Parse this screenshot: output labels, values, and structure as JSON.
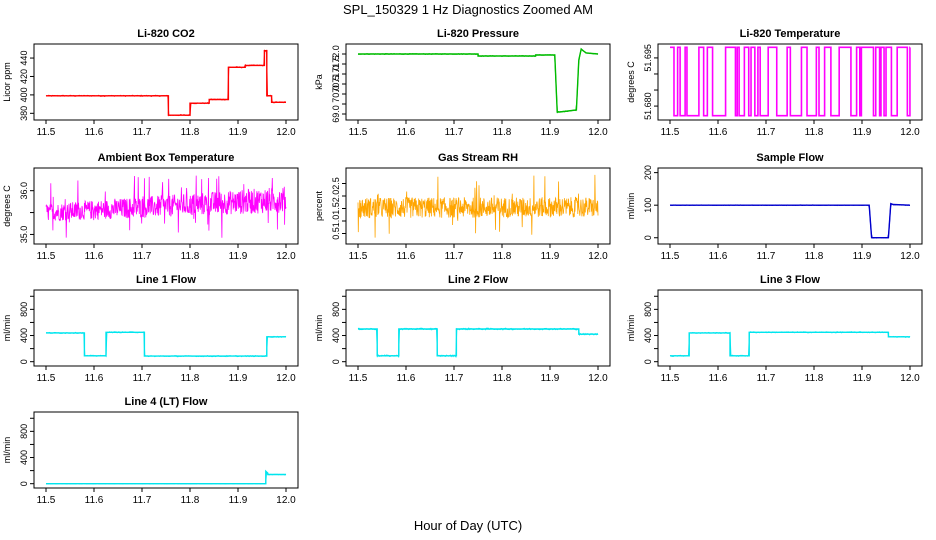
{
  "figure": {
    "title": "SPL_150329  1 Hz Diagnostics Zoomed AM",
    "xlabel": "Hour of Day (UTC)"
  },
  "chart_data": [
    {
      "type": "line",
      "title": "Li-820 CO2",
      "ylabel": "Licor ppm",
      "color": "#ff0000",
      "xlim": [
        11.5,
        12.0
      ],
      "ylim": [
        376,
        452
      ],
      "yticks": [
        380,
        400,
        420,
        440
      ],
      "ytick_labels": [
        "380",
        "400",
        "420",
        "440"
      ],
      "noise": 0.6,
      "series": [
        {
          "x": [
            11.5,
            11.755,
            11.755,
            11.8,
            11.8,
            11.84,
            11.84,
            11.88,
            11.88,
            11.915,
            11.915,
            11.955,
            11.955,
            11.96,
            11.96,
            11.97,
            11.97,
            12.0
          ],
          "y": [
            399,
            399,
            378,
            378,
            391,
            391,
            395,
            395,
            430,
            430,
            432,
            432,
            448,
            448,
            399,
            399,
            392,
            392
          ]
        }
      ]
    },
    {
      "type": "line",
      "title": "Li-820 Pressure",
      "ylabel": "kPa",
      "color": "#00bb00",
      "xlim": [
        11.5,
        12.0
      ],
      "ylim": [
        68.85,
        72.35
      ],
      "yticks": [
        69.0,
        69.5,
        70.0,
        70.5,
        71.0,
        71.5,
        72.0
      ],
      "ytick_labels": [
        "69.0",
        "",
        "70.0",
        "70.5",
        "71.0",
        "71.5",
        "72.0"
      ],
      "noise": 0.02,
      "series": [
        {
          "x": [
            11.5,
            11.75,
            11.75,
            11.87,
            11.87,
            11.91,
            11.915,
            11.92,
            11.955,
            11.96,
            11.965,
            11.975,
            12.0
          ],
          "y": [
            72.0,
            72.0,
            71.9,
            71.9,
            71.95,
            71.95,
            69.1,
            69.1,
            69.2,
            71.7,
            72.25,
            72.05,
            72.0
          ]
        }
      ]
    },
    {
      "type": "line",
      "title": "Li-820 Temperature",
      "ylabel": "degrees C",
      "color": "#ff00ff",
      "xlim": [
        11.5,
        12.0
      ],
      "ylim": [
        51.6766,
        51.6984
      ],
      "yticks": [
        51.68,
        51.685,
        51.69,
        51.695
      ],
      "ytick_labels": [
        "51.680",
        "",
        "",
        "51.695"
      ],
      "style": "toggle",
      "levels": [
        51.677,
        51.6983
      ],
      "series": []
    },
    {
      "type": "line",
      "title": "Ambient Box Temperature",
      "ylabel": "degrees C",
      "color": "#ff00ff",
      "xlim": [
        11.5,
        12.0
      ],
      "ylim": [
        34.85,
        36.45
      ],
      "yticks": [
        35.0,
        35.5,
        36.0
      ],
      "ytick_labels": [
        "35.0",
        "",
        "36.0"
      ],
      "style": "noiseband",
      "band": {
        "lo0": 35.3,
        "lo1": 35.5,
        "hi0": 35.7,
        "hi1": 36.1,
        "min": 34.9,
        "max": 36.35
      },
      "series": []
    },
    {
      "type": "line",
      "title": "Gas Stream RH",
      "ylabel": "percent",
      "color": "#ffa500",
      "xlim": [
        11.5,
        12.0
      ],
      "ylim": [
        0.2,
        3.0
      ],
      "yticks": [
        0.5,
        1.0,
        1.5,
        2.0,
        2.5
      ],
      "ytick_labels": [
        "0.5",
        "1.0",
        "1.5",
        "2.0",
        "2.5"
      ],
      "style": "noiseband",
      "band": {
        "lo0": 1.1,
        "lo1": 1.15,
        "hi0": 1.95,
        "hi1": 1.95,
        "min": 0.3,
        "max": 2.85
      },
      "series": []
    },
    {
      "type": "line",
      "title": "Sample Flow",
      "ylabel": "ml/min",
      "color": "#0000cc",
      "xlim": [
        11.5,
        12.0
      ],
      "ylim": [
        -10,
        205
      ],
      "yticks": [
        0,
        100,
        200
      ],
      "ytick_labels": [
        "0",
        "100",
        "200"
      ],
      "noise": 1.0,
      "series": [
        {
          "x": [
            11.5,
            11.915,
            11.92,
            11.955,
            11.96,
            11.965,
            12.0
          ],
          "y": [
            100,
            100,
            0,
            0,
            105,
            102,
            100
          ]
        }
      ]
    },
    {
      "type": "line",
      "title": "Line 1 Flow",
      "ylabel": "ml/min",
      "color": "#00e5ee",
      "xlim": [
        11.5,
        12.0
      ],
      "ylim": [
        -20,
        1050
      ],
      "yticks": [
        0,
        200,
        400,
        600,
        800,
        1000
      ],
      "ytick_labels": [
        "0",
        "",
        "400",
        "",
        "800",
        ""
      ],
      "noise": 8,
      "series": [
        {
          "x": [
            11.5,
            11.58,
            11.58,
            11.625,
            11.625,
            11.705,
            11.705,
            11.96,
            11.96,
            12.0
          ],
          "y": [
            440,
            440,
            90,
            90,
            450,
            450,
            85,
            85,
            380,
            380
          ]
        }
      ]
    },
    {
      "type": "line",
      "title": "Line 2 Flow",
      "ylabel": "ml/min",
      "color": "#00e5ee",
      "xlim": [
        11.5,
        12.0
      ],
      "ylim": [
        -20,
        1050
      ],
      "yticks": [
        0,
        200,
        400,
        600,
        800,
        1000
      ],
      "ytick_labels": [
        "0",
        "",
        "400",
        "",
        "800",
        ""
      ],
      "noise": 12,
      "series": [
        {
          "x": [
            11.5,
            11.54,
            11.54,
            11.585,
            11.585,
            11.665,
            11.665,
            11.705,
            11.705,
            11.96,
            11.96,
            12.0
          ],
          "y": [
            500,
            500,
            90,
            90,
            500,
            500,
            90,
            90,
            500,
            500,
            420,
            420
          ]
        }
      ]
    },
    {
      "type": "line",
      "title": "Line 3 Flow",
      "ylabel": "ml/min",
      "color": "#00e5ee",
      "xlim": [
        11.5,
        12.0
      ],
      "ylim": [
        -20,
        1050
      ],
      "yticks": [
        0,
        200,
        400,
        600,
        800,
        1000
      ],
      "ytick_labels": [
        "0",
        "",
        "400",
        "",
        "800",
        ""
      ],
      "noise": 8,
      "series": [
        {
          "x": [
            11.5,
            11.54,
            11.54,
            11.625,
            11.625,
            11.665,
            11.665,
            11.955,
            11.955,
            12.0
          ],
          "y": [
            90,
            90,
            440,
            440,
            90,
            90,
            450,
            450,
            380,
            380
          ]
        }
      ]
    },
    {
      "type": "line",
      "title": "Line 4 (LT) Flow",
      "ylabel": "ml/min",
      "color": "#00e5ee",
      "xlim": [
        11.5,
        12.0
      ],
      "ylim": [
        -20,
        1050
      ],
      "yticks": [
        0,
        200,
        400,
        600,
        800,
        1000
      ],
      "ytick_labels": [
        "0",
        "",
        "400",
        "",
        "800",
        ""
      ],
      "noise": 3,
      "series": [
        {
          "x": [
            11.5,
            11.958,
            11.958,
            11.962,
            11.962,
            12.0
          ],
          "y": [
            0,
            0,
            190,
            160,
            140,
            140
          ]
        }
      ]
    }
  ],
  "xticks": [
    11.5,
    11.6,
    11.7,
    11.8,
    11.9,
    12.0
  ],
  "xtick_labels": [
    "11.5",
    "11.6",
    "11.7",
    "11.8",
    "11.9",
    "12.0"
  ]
}
